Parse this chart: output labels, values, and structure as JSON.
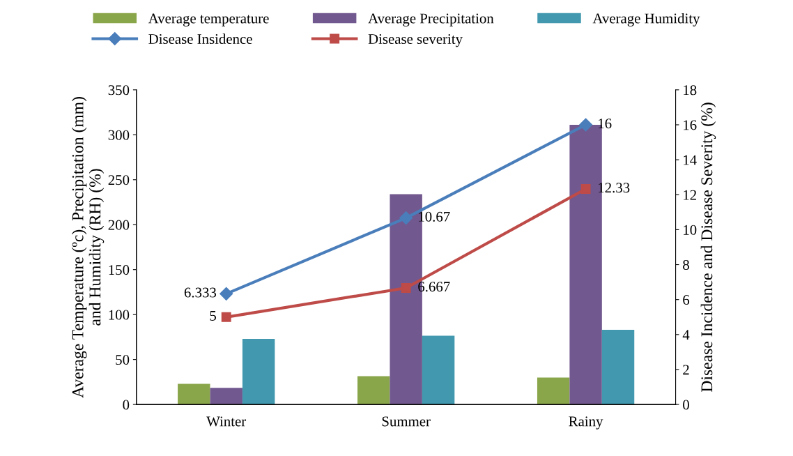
{
  "chart_data": {
    "type": "bar",
    "categories": [
      "Winter",
      "Summer",
      "Rainy"
    ],
    "ylabel": "Average Temperature (ºc), Precipitation (mm)\nand Humidity (RH) (%)",
    "y2label": "Disease Incidence and Disease Severity (%)",
    "ylim": [
      0,
      350
    ],
    "yticks": [
      0,
      50,
      100,
      150,
      200,
      250,
      300,
      350
    ],
    "y2lim": [
      0,
      18
    ],
    "y2ticks": [
      0,
      2,
      4,
      6,
      8,
      10,
      12,
      14,
      16,
      18
    ],
    "grid": false,
    "legend": "top",
    "series": [
      {
        "name": "Average temperature",
        "color": "#8aa64a",
        "values": [
          23,
          31.5,
          30
        ]
      },
      {
        "name": "Average Precipitation",
        "color": "#71588f",
        "values": [
          18.5,
          234,
          311
        ]
      },
      {
        "name": "Average Humidity",
        "color": "#4198af",
        "values": [
          73,
          76.5,
          83
        ]
      },
      {
        "name": "Disease Insidence",
        "type": "line",
        "axis": "y2",
        "marker": "diamond",
        "color": "#4a7ebb",
        "values": [
          6.333,
          10.67,
          16
        ],
        "value_labels": [
          "6.333",
          "10.67",
          "16"
        ]
      },
      {
        "name": "Disease severity",
        "type": "line",
        "axis": "y2",
        "marker": "square",
        "color": "#be4b48",
        "values": [
          5,
          6.667,
          12.33
        ],
        "value_labels": [
          "5",
          "6.667",
          "12.33"
        ]
      }
    ]
  }
}
